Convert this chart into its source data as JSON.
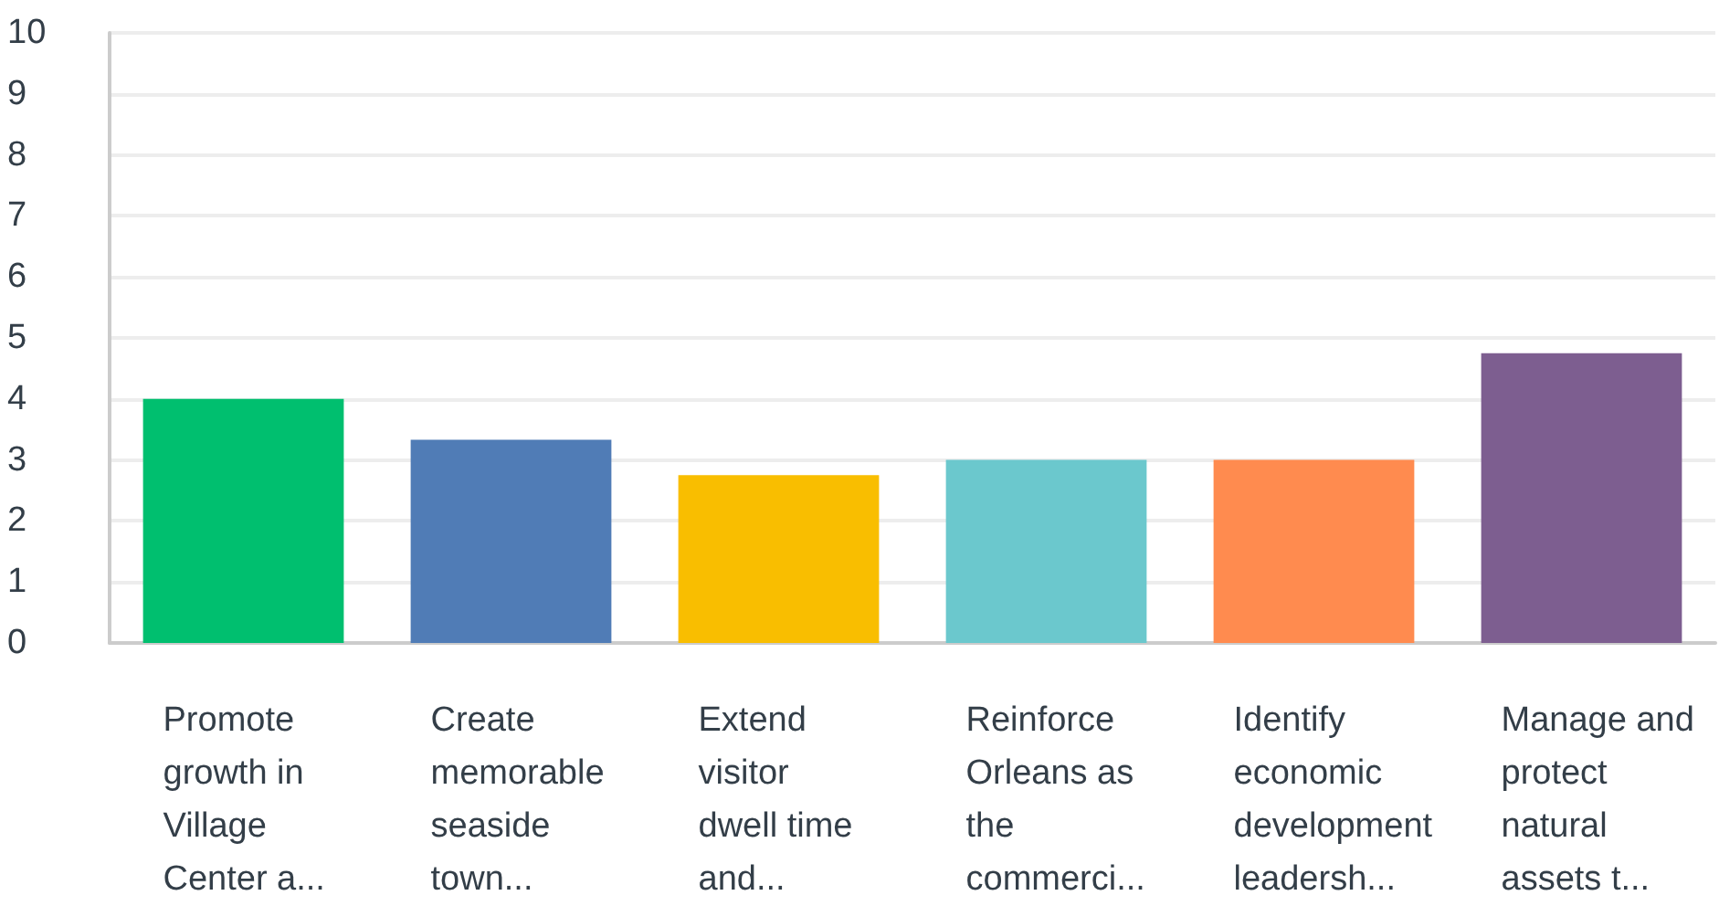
{
  "chart_data": {
    "type": "bar",
    "categories": [
      "Promote\ngrowth in\nVillage\nCenter a...",
      "Create\nmemorable\nseaside\ntown...",
      "Extend\nvisitor\ndwell time\nand...",
      "Reinforce\nOrleans as\nthe\ncommerci...",
      "Identify\neconomic\ndevelopment\nleadersh...",
      "Manage and\nprotect\nnatural\nassets t..."
    ],
    "values": [
      4.0,
      3.33,
      2.75,
      3.0,
      3.0,
      4.75
    ],
    "colors": [
      "#00bf6f",
      "#507cb6",
      "#f9be00",
      "#6bc8cd",
      "#ff8b4f",
      "#7d5e90"
    ],
    "ylim": [
      0,
      10
    ],
    "yticks": [
      0,
      1,
      2,
      3,
      4,
      5,
      6,
      7,
      8,
      9,
      10
    ],
    "grid": true
  }
}
